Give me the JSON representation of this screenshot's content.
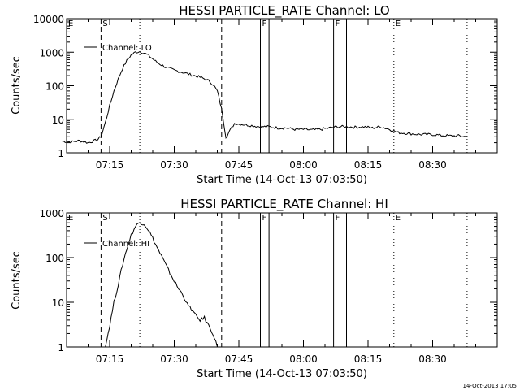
{
  "chart_data": [
    {
      "type": "line",
      "title": "HESSI PARTICLE_RATE Channel: LO",
      "xlabel": "Start Time (14-Oct-13 07:03:50)",
      "ylabel": "Counts/sec",
      "yscale": "log",
      "ylim": [
        1,
        10000
      ],
      "xlim": [
        "07:05",
        "08:45"
      ],
      "xticks": [
        "07:15",
        "07:30",
        "07:45",
        "08:00",
        "08:15",
        "08:30"
      ],
      "yticks": [
        "1",
        "10",
        "100",
        "1000",
        "10000"
      ],
      "legend": {
        "placement": "top-left",
        "entries": [
          "Channel: LO"
        ]
      },
      "grid": false,
      "markers": {
        "dashed": [
          "07:13",
          "07:41"
        ],
        "dotted": [
          "07:22",
          "08:21",
          "08:38"
        ],
        "solid": [
          "07:50",
          "07:52",
          "08:07",
          "08:10"
        ],
        "letters": [
          {
            "text": "E",
            "x": "07:05"
          },
          {
            "text": "S",
            "x": "07:13"
          },
          {
            "text": "F",
            "x": "07:50"
          },
          {
            "text": "F",
            "x": "08:07"
          },
          {
            "text": "E",
            "x": "08:21"
          }
        ]
      },
      "series": [
        {
          "name": "Channel: LO",
          "x": [
            "07:04",
            "07:06",
            "07:08",
            "07:10",
            "07:12",
            "07:13",
            "07:14",
            "07:15",
            "07:16",
            "07:17",
            "07:18",
            "07:19",
            "07:20",
            "07:21",
            "07:22",
            "07:23",
            "07:24",
            "07:25",
            "07:26",
            "07:27",
            "07:28",
            "07:29",
            "07:30",
            "07:31",
            "07:32",
            "07:33",
            "07:34",
            "07:35",
            "07:36",
            "07:37",
            "07:38",
            "07:39",
            "07:40",
            "07:41",
            "07:42",
            "07:44",
            "07:46",
            "07:48",
            "07:50",
            "07:52",
            "07:54",
            "07:56",
            "07:58",
            "08:00",
            "08:02",
            "08:04",
            "08:06",
            "08:08",
            "08:10",
            "08:12",
            "08:14",
            "08:16",
            "08:18",
            "08:20",
            "08:22",
            "08:24",
            "08:26",
            "08:28",
            "08:30",
            "08:32",
            "08:34",
            "08:36",
            "08:38"
          ],
          "values": [
            2.2,
            2.1,
            2.3,
            2.0,
            2.4,
            3,
            8,
            25,
            70,
            160,
            330,
            560,
            830,
            1000,
            1050,
            950,
            800,
            630,
            500,
            420,
            360,
            320,
            290,
            270,
            250,
            230,
            210,
            195,
            180,
            160,
            140,
            110,
            70,
            20,
            3,
            7.5,
            7,
            6.5,
            6,
            6,
            5.5,
            5.5,
            5,
            5,
            4.8,
            5,
            5.5,
            6,
            6,
            5.8,
            6,
            5.5,
            6,
            5,
            4,
            3.8,
            3.6,
            3.5,
            3.5,
            3.3,
            3.2,
            3.2,
            3
          ]
        }
      ]
    },
    {
      "type": "line",
      "title": "HESSI PARTICLE_RATE Channel: HI",
      "xlabel": "Start Time (14-Oct-13 07:03:50)",
      "ylabel": "Counts/sec",
      "yscale": "log",
      "ylim": [
        1,
        1000
      ],
      "xlim": [
        "07:05",
        "08:45"
      ],
      "xticks": [
        "07:15",
        "07:30",
        "07:45",
        "08:00",
        "08:15",
        "08:30"
      ],
      "yticks": [
        "1",
        "10",
        "100",
        "1000"
      ],
      "legend": {
        "placement": "top-left",
        "entries": [
          "Channel: HI"
        ]
      },
      "grid": false,
      "markers": {
        "dashed": [
          "07:13",
          "07:41"
        ],
        "dotted": [
          "07:22",
          "08:21",
          "08:38"
        ],
        "solid": [
          "07:50",
          "07:52",
          "08:07",
          "08:10"
        ],
        "letters": [
          {
            "text": "E",
            "x": "07:05"
          },
          {
            "text": "S",
            "x": "07:13"
          },
          {
            "text": "F",
            "x": "07:50"
          },
          {
            "text": "F",
            "x": "08:07"
          },
          {
            "text": "E",
            "x": "08:21"
          }
        ]
      },
      "series": [
        {
          "name": "Channel: HI",
          "x": [
            "07:14",
            "07:15",
            "07:16",
            "07:17",
            "07:18",
            "07:19",
            "07:20",
            "07:21",
            "07:22",
            "07:23",
            "07:24",
            "07:25",
            "07:26",
            "07:27",
            "07:28",
            "07:29",
            "07:30",
            "07:31",
            "07:32",
            "07:33",
            "07:34",
            "07:35",
            "07:36",
            "07:37",
            "07:38",
            "07:39",
            "07:40"
          ],
          "values": [
            1,
            3,
            10,
            25,
            70,
            160,
            320,
            500,
            620,
            570,
            420,
            270,
            170,
            110,
            70,
            45,
            30,
            20,
            15,
            9,
            7,
            5,
            4,
            4.5,
            3,
            2,
            1
          ]
        }
      ]
    }
  ],
  "footer": {
    "timestamp": "14-Oct-2013 17:05"
  }
}
